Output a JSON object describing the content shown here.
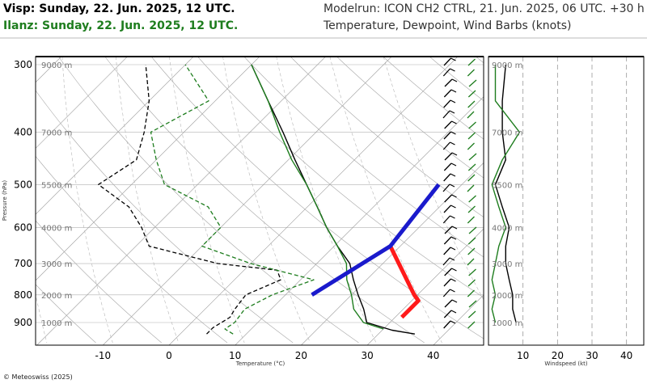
{
  "header": {
    "title_visp": "Visp: Sunday, 22. Jun. 2025, 12 UTC.",
    "title_ilanz": "Ilanz: Sunday, 22. Jun. 2025, 12 UTC.",
    "model_run": "Modelrun: ICON CH2 CTRL, 21. Jun. 2025, 06 UTC. +30 h",
    "description": "Temperature, Dewpoint, Wind Barbs (knots)"
  },
  "footer": {
    "copyright": "© Meteoswiss (2025)"
  },
  "colors": {
    "visp": "#000000",
    "ilanz": "#1e7d1e",
    "adiabat_red": "#ff1a1a",
    "adiabat_blue": "#1a1acc",
    "grid": "#9a9a9a"
  },
  "chart_data": [
    {
      "type": "line",
      "subtype": "skew-t",
      "xlabel": "Temperature (°C)",
      "ylabel": "Pressure (hPa)",
      "x_ticks": [
        -10,
        0,
        10,
        20,
        30,
        40
      ],
      "y_ticks": [
        300,
        400,
        500,
        600,
        700,
        800,
        900
      ],
      "altitude_labels": [
        {
          "p": 300,
          "label": "9000 m"
        },
        {
          "p": 400,
          "label": "7000 m"
        },
        {
          "p": 500,
          "label": "5500 m"
        },
        {
          "p": 600,
          "label": "4000 m"
        },
        {
          "p": 700,
          "label": "3000 m"
        },
        {
          "p": 800,
          "label": "2000 m"
        },
        {
          "p": 900,
          "label": "1000 m"
        }
      ],
      "series": [
        {
          "name": "Visp",
          "kind": "temperature",
          "color": "#000000",
          "points": [
            [
              945,
              35.5
            ],
            [
              930,
              31.5
            ],
            [
              900,
              26.5
            ],
            [
              850,
              24
            ],
            [
              800,
              21
            ],
            [
              750,
              18
            ],
            [
              700,
              15
            ],
            [
              650,
              10.5
            ],
            [
              600,
              6
            ],
            [
              550,
              1.5
            ],
            [
              500,
              -3.5
            ],
            [
              450,
              -9
            ],
            [
              400,
              -15
            ],
            [
              350,
              -22
            ],
            [
              300,
              -30
            ]
          ]
        },
        {
          "name": "Ilanz",
          "kind": "temperature",
          "color": "#1e7d1e",
          "points": [
            [
              925,
              30
            ],
            [
              900,
              26
            ],
            [
              850,
              22.5
            ],
            [
              800,
              20
            ],
            [
              750,
              17
            ],
            [
              700,
              14.5
            ],
            [
              650,
              10.5
            ],
            [
              600,
              6
            ],
            [
              550,
              1.5
            ],
            [
              500,
              -3.5
            ],
            [
              450,
              -9.5
            ],
            [
              400,
              -15.5
            ],
            [
              350,
              -22
            ],
            [
              300,
              -30
            ]
          ]
        },
        {
          "name": "Visp",
          "kind": "dewpoint",
          "color": "#000000",
          "points": [
            [
              945,
              4
            ],
            [
              920,
              4
            ],
            [
              880,
              5
            ],
            [
              850,
              4.5
            ],
            [
              800,
              4
            ],
            [
              750,
              7
            ],
            [
              720,
              5
            ],
            [
              700,
              -5
            ],
            [
              650,
              -18
            ],
            [
              600,
              -22
            ],
            [
              550,
              -27
            ],
            [
              500,
              -35
            ],
            [
              450,
              -33
            ],
            [
              400,
              -36
            ],
            [
              350,
              -40
            ],
            [
              300,
              -46
            ]
          ]
        },
        {
          "name": "Ilanz",
          "kind": "dewpoint",
          "color": "#1e7d1e",
          "points": [
            [
              945,
              8
            ],
            [
              925,
              6
            ],
            [
              900,
              6.5
            ],
            [
              850,
              6
            ],
            [
              800,
              8
            ],
            [
              750,
              12
            ],
            [
              700,
              0
            ],
            [
              650,
              -10
            ],
            [
              600,
              -10
            ],
            [
              550,
              -15
            ],
            [
              500,
              -25
            ],
            [
              450,
              -30
            ],
            [
              400,
              -35
            ],
            [
              350,
              -31
            ],
            [
              300,
              -40
            ]
          ]
        },
        {
          "name": "",
          "kind": "dry-adiabat",
          "color": "#ff1a1a",
          "points": [
            [
              880,
              31
            ],
            [
              820,
              31
            ],
            [
              800,
              29.5
            ],
            [
              650,
              18.5
            ]
          ]
        },
        {
          "name": "",
          "kind": "moist-adiabat",
          "color": "#1a1acc",
          "points": [
            [
              800,
              14
            ],
            [
              650,
              18.5
            ],
            [
              500,
              16.5
            ]
          ]
        }
      ]
    },
    {
      "type": "line",
      "subtype": "wind-profile",
      "xlabel": "Windspeed (kt)",
      "x_ticks": [
        10,
        20,
        30,
        40
      ],
      "xlim": [
        0,
        45
      ],
      "series": [
        {
          "name": "Visp",
          "color": "#000000",
          "points": [
            [
              300,
              5
            ],
            [
              350,
              4
            ],
            [
              400,
              4
            ],
            [
              450,
              5
            ],
            [
              500,
              2
            ],
            [
              550,
              4
            ],
            [
              600,
              6
            ],
            [
              650,
              5
            ],
            [
              700,
              5
            ],
            [
              750,
              6
            ],
            [
              800,
              7
            ],
            [
              850,
              7
            ],
            [
              900,
              8
            ]
          ]
        },
        {
          "name": "Ilanz",
          "color": "#1e7d1e",
          "points": [
            [
              300,
              2
            ],
            [
              350,
              2
            ],
            [
              400,
              9
            ],
            [
              450,
              4
            ],
            [
              500,
              1
            ],
            [
              550,
              3
            ],
            [
              600,
              5
            ],
            [
              650,
              3
            ],
            [
              700,
              2
            ],
            [
              750,
              1
            ],
            [
              800,
              2
            ],
            [
              850,
              1
            ],
            [
              900,
              2
            ]
          ]
        }
      ]
    }
  ]
}
